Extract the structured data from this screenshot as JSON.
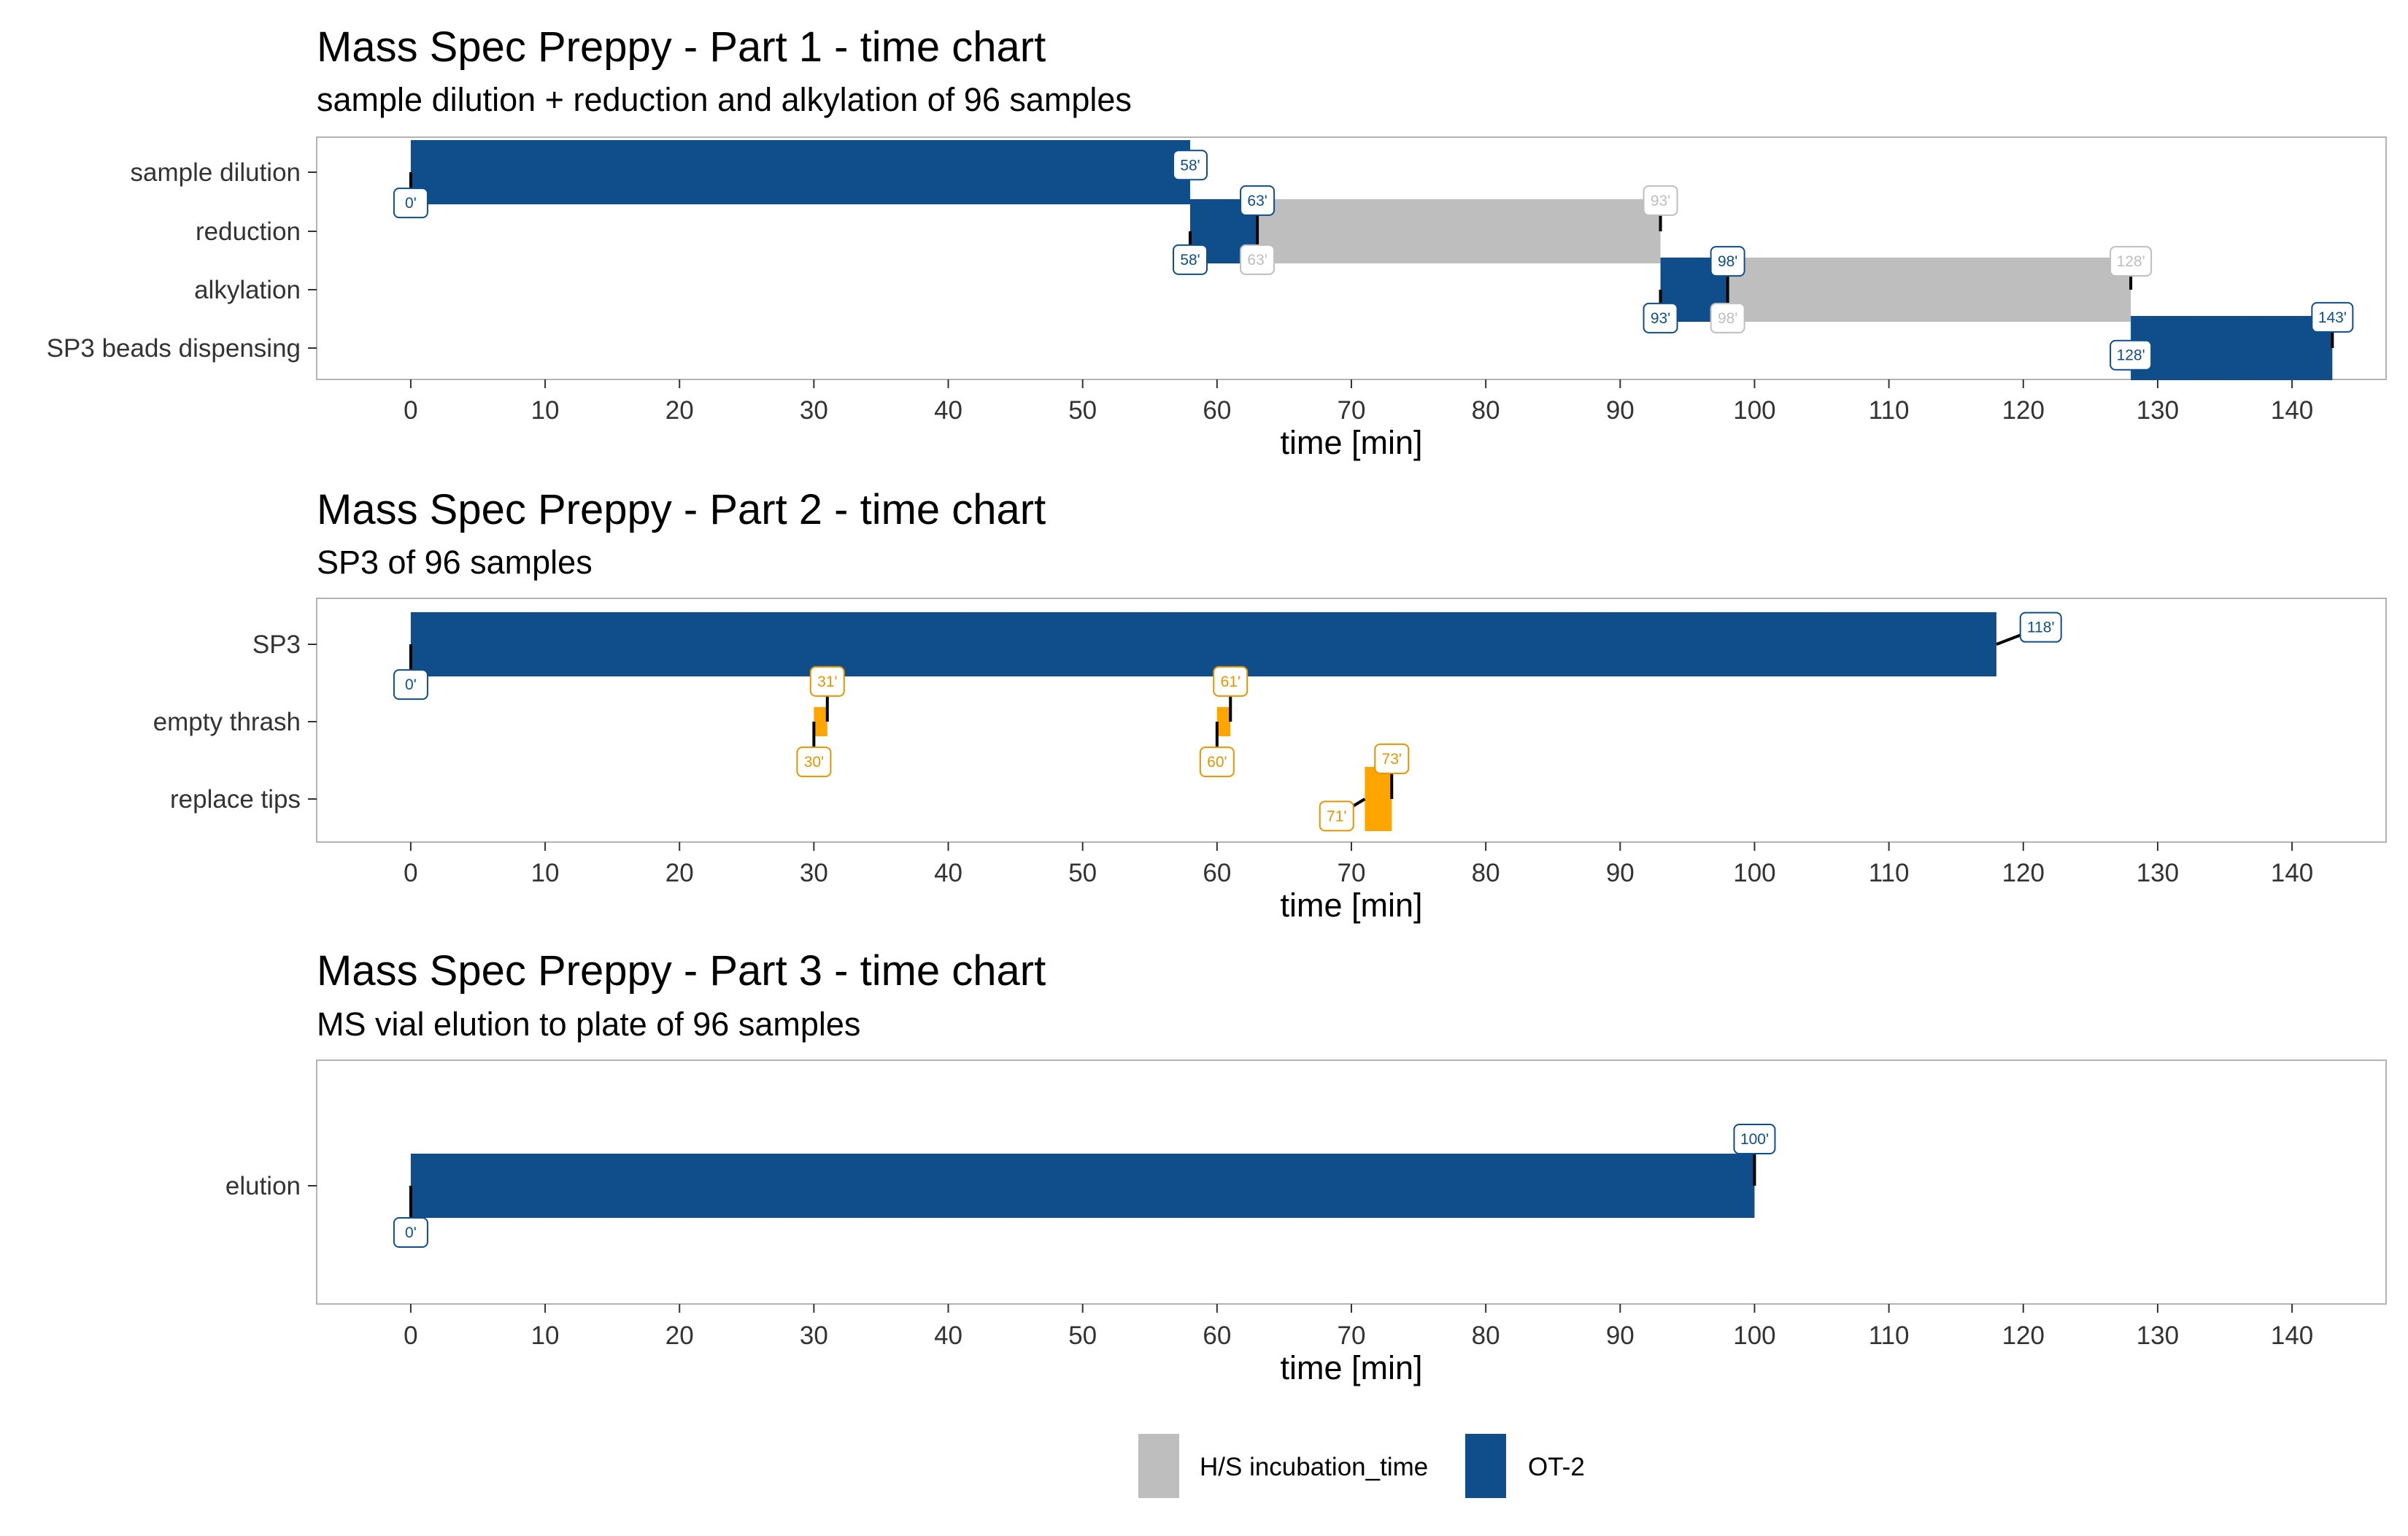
{
  "colors": {
    "ot2": "#0F4E8A",
    "hs": "#BEBEBE",
    "manual": "#FFA500",
    "panel_border": "#B3B3B3",
    "connector": "#000000"
  },
  "legend": {
    "items": [
      {
        "label": "H/S incubation_time",
        "color": "#BEBEBE"
      },
      {
        "label": "OT-2",
        "color": "#0F4E8A"
      }
    ]
  },
  "chart_data": [
    {
      "type": "gantt",
      "title": "Mass Spec Preppy - Part 1 - time chart",
      "subtitle": "sample dilution + reduction and alkylation of 96 samples",
      "xlabel": "time [min]",
      "xlim": [
        -7,
        147
      ],
      "xticks": [
        0,
        10,
        20,
        30,
        40,
        50,
        60,
        70,
        80,
        90,
        100,
        110,
        120,
        130,
        140
      ],
      "rows": [
        "sample dilution",
        "reduction",
        "alkylation",
        "SP3 beads dispensing"
      ],
      "tasks": [
        {
          "row": "sample dilution",
          "start": 0,
          "end": 58,
          "kind": "ot2"
        },
        {
          "row": "reduction",
          "start": 58,
          "end": 63,
          "kind": "ot2"
        },
        {
          "row": "reduction",
          "start": 63,
          "end": 93,
          "kind": "hs"
        },
        {
          "row": "alkylation",
          "start": 93,
          "end": 98,
          "kind": "ot2"
        },
        {
          "row": "alkylation",
          "start": 98,
          "end": 128,
          "kind": "hs"
        },
        {
          "row": "SP3 beads dispensing",
          "start": 128,
          "end": 143,
          "kind": "ot2"
        }
      ],
      "labels": [
        {
          "text": "0'",
          "x": 0,
          "row": "sample dilution",
          "dy": -0.52,
          "kind": "ot2"
        },
        {
          "text": "58'",
          "x": 58,
          "row": "sample dilution",
          "dy": 0.12,
          "kind": "ot2"
        },
        {
          "text": "58'",
          "x": 58,
          "row": "reduction",
          "dy": -0.48,
          "kind": "ot2"
        },
        {
          "text": "63'",
          "x": 63,
          "row": "reduction",
          "dy": 0.52,
          "kind": "ot2"
        },
        {
          "text": "63'",
          "x": 63,
          "row": "reduction",
          "dy": -0.48,
          "kind": "hs"
        },
        {
          "text": "93'",
          "x": 93,
          "row": "reduction",
          "dy": 0.52,
          "kind": "hs"
        },
        {
          "text": "93'",
          "x": 93,
          "row": "alkylation",
          "dy": -0.48,
          "kind": "ot2"
        },
        {
          "text": "98'",
          "x": 98,
          "row": "alkylation",
          "dy": 0.48,
          "kind": "ot2"
        },
        {
          "text": "98'",
          "x": 98,
          "row": "alkylation",
          "dy": -0.48,
          "kind": "hs"
        },
        {
          "text": "128'",
          "x": 128,
          "row": "alkylation",
          "dy": 0.48,
          "kind": "hs"
        },
        {
          "text": "128'",
          "x": 128,
          "row": "SP3 beads dispensing",
          "dy": -0.12,
          "kind": "ot2"
        },
        {
          "text": "143'",
          "x": 143,
          "row": "SP3 beads dispensing",
          "dy": 0.52,
          "kind": "ot2"
        }
      ]
    },
    {
      "type": "gantt",
      "title": "Mass Spec Preppy - Part 2 - time chart",
      "subtitle": "SP3 of 96 samples",
      "xlabel": "time [min]",
      "xlim": [
        -7,
        147
      ],
      "xticks": [
        0,
        10,
        20,
        30,
        40,
        50,
        60,
        70,
        80,
        90,
        100,
        110,
        120,
        130,
        140
      ],
      "rows": [
        "SP3",
        "empty thrash",
        "replace tips"
      ],
      "tasks": [
        {
          "row": "SP3",
          "start": 0,
          "end": 118,
          "kind": "ot2"
        },
        {
          "row": "empty thrash",
          "start": 30,
          "end": 31,
          "kind": "manual"
        },
        {
          "row": "empty thrash",
          "start": 60,
          "end": 61,
          "kind": "manual"
        },
        {
          "row": "replace tips",
          "start": 71,
          "end": 73,
          "kind": "manual"
        }
      ],
      "labels": [
        {
          "text": "0'",
          "x": 0,
          "row": "SP3",
          "dy": -0.52,
          "kind": "ot2"
        },
        {
          "text": "118'",
          "x": 118,
          "row": "SP3",
          "dy": 0.22,
          "kind": "ot2",
          "xshift": 3.3
        },
        {
          "text": "30'",
          "x": 30,
          "row": "empty thrash",
          "dy": -0.52,
          "kind": "manual"
        },
        {
          "text": "31'",
          "x": 31,
          "row": "empty thrash",
          "dy": 0.52,
          "kind": "manual"
        },
        {
          "text": "60'",
          "x": 60,
          "row": "empty thrash",
          "dy": -0.52,
          "kind": "manual"
        },
        {
          "text": "61'",
          "x": 61,
          "row": "empty thrash",
          "dy": 0.52,
          "kind": "manual"
        },
        {
          "text": "71'",
          "x": 71,
          "row": "replace tips",
          "dy": -0.22,
          "kind": "manual",
          "xshift": -2.1
        },
        {
          "text": "73'",
          "x": 73,
          "row": "replace tips",
          "dy": 0.52,
          "kind": "manual"
        }
      ]
    },
    {
      "type": "gantt",
      "title": "Mass Spec Preppy - Part 3 - time chart",
      "subtitle": "MS vial elution to plate of 96 samples",
      "xlabel": "time [min]",
      "xlim": [
        -7,
        147
      ],
      "xticks": [
        0,
        10,
        20,
        30,
        40,
        50,
        60,
        70,
        80,
        90,
        100,
        110,
        120,
        130,
        140
      ],
      "rows": [
        "elution"
      ],
      "tasks": [
        {
          "row": "elution",
          "start": 0,
          "end": 100,
          "kind": "ot2"
        }
      ],
      "labels": [
        {
          "text": "0'",
          "x": 0,
          "row": "elution",
          "dy": -0.4,
          "kind": "ot2"
        },
        {
          "text": "100'",
          "x": 100,
          "row": "elution",
          "dy": 0.4,
          "kind": "ot2"
        }
      ]
    }
  ]
}
